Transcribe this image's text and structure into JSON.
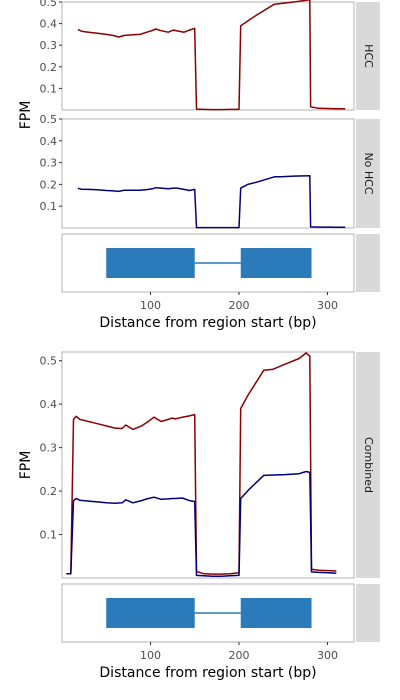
{
  "chart_data": [
    {
      "type": "line",
      "facets": [
        {
          "label": "HCC",
          "ylim": [
            0,
            0.5
          ],
          "yticks": [
            0.1,
            0.2,
            0.3,
            0.4,
            0.5
          ],
          "series": [
            {
              "color": "#8b0000",
              "x": [
                18,
                22,
                30,
                40,
                50,
                58,
                64,
                70,
                80,
                88,
                96,
                102,
                106,
                112,
                120,
                126,
                130,
                138,
                144,
                150,
                152,
                160,
                170,
                180,
                190,
                200,
                202,
                220,
                240,
                262,
                280,
                281,
                290,
                300,
                310,
                320
              ],
              "y": [
                0.373,
                0.365,
                0.36,
                0.355,
                0.35,
                0.345,
                0.338,
                0.345,
                0.348,
                0.35,
                0.36,
                0.368,
                0.375,
                0.367,
                0.36,
                0.37,
                0.366,
                0.36,
                0.37,
                0.378,
                0.004,
                0.003,
                0.002,
                0.002,
                0.003,
                0.003,
                0.39,
                0.44,
                0.49,
                0.5,
                0.51,
                0.015,
                0.008,
                0.007,
                0.006,
                0.006
              ]
            }
          ]
        },
        {
          "label": "No HCC",
          "ylim": [
            0,
            0.5
          ],
          "yticks": [
            0.1,
            0.2,
            0.3,
            0.4,
            0.5
          ],
          "series": [
            {
              "color": "#00007a",
              "x": [
                18,
                22,
                30,
                40,
                50,
                58,
                64,
                70,
                80,
                88,
                96,
                102,
                106,
                112,
                120,
                126,
                130,
                138,
                144,
                150,
                152,
                160,
                170,
                180,
                190,
                200,
                202,
                210,
                220,
                240,
                248,
                262,
                280,
                281,
                290,
                300,
                310,
                320
              ],
              "y": [
                0.182,
                0.178,
                0.177,
                0.175,
                0.172,
                0.17,
                0.168,
                0.173,
                0.173,
                0.173,
                0.176,
                0.18,
                0.185,
                0.183,
                0.18,
                0.183,
                0.183,
                0.177,
                0.172,
                0.177,
                0.002,
                0.002,
                0.002,
                0.002,
                0.002,
                0.002,
                0.183,
                0.2,
                0.21,
                0.235,
                0.235,
                0.238,
                0.24,
                0.005,
                0.004,
                0.004,
                0.003,
                0.003
              ]
            }
          ]
        }
      ],
      "gene_model": {
        "exons": [
          [
            50,
            150
          ],
          [
            202,
            282
          ]
        ],
        "intron": [
          150,
          202
        ]
      },
      "xlim": [
        0,
        330
      ],
      "xticks": [
        100,
        200,
        300
      ],
      "xlabel": "Distance from region start (bp)",
      "ylabel": "FPM"
    },
    {
      "type": "line",
      "facets": [
        {
          "label": "Combined",
          "ylim": [
            0,
            0.52
          ],
          "yticks": [
            0.1,
            0.2,
            0.3,
            0.4,
            0.5
          ],
          "series": [
            {
              "color": "#8b0000",
              "x": [
                5,
                10,
                13,
                16,
                20,
                30,
                40,
                50,
                60,
                68,
                72,
                80,
                90,
                96,
                104,
                112,
                120,
                124,
                128,
                136,
                144,
                150,
                152,
                160,
                170,
                180,
                190,
                200,
                202,
                210,
                228,
                238,
                252,
                268,
                276,
                280,
                282,
                290,
                300,
                310
              ],
              "y": [
                0.01,
                0.01,
                0.365,
                0.372,
                0.365,
                0.36,
                0.355,
                0.35,
                0.345,
                0.344,
                0.352,
                0.342,
                0.35,
                0.358,
                0.37,
                0.36,
                0.365,
                0.368,
                0.366,
                0.37,
                0.373,
                0.376,
                0.015,
                0.01,
                0.009,
                0.009,
                0.01,
                0.012,
                0.39,
                0.42,
                0.478,
                0.48,
                0.492,
                0.505,
                0.518,
                0.51,
                0.02,
                0.018,
                0.017,
                0.016
              ]
            },
            {
              "color": "#00007a",
              "x": [
                5,
                10,
                13,
                16,
                20,
                30,
                40,
                50,
                60,
                68,
                72,
                80,
                90,
                96,
                104,
                112,
                120,
                124,
                128,
                136,
                144,
                150,
                152,
                160,
                170,
                180,
                190,
                200,
                202,
                212,
                228,
                240,
                252,
                268,
                276,
                280,
                282,
                290,
                300,
                310
              ],
              "y": [
                0.01,
                0.01,
                0.178,
                0.183,
                0.179,
                0.177,
                0.175,
                0.173,
                0.172,
                0.173,
                0.18,
                0.173,
                0.178,
                0.182,
                0.186,
                0.181,
                0.182,
                0.183,
                0.183,
                0.184,
                0.178,
                0.176,
                0.006,
                0.005,
                0.004,
                0.004,
                0.005,
                0.006,
                0.183,
                0.205,
                0.236,
                0.237,
                0.238,
                0.24,
                0.245,
                0.243,
                0.014,
                0.013,
                0.012,
                0.011
              ]
            }
          ]
        }
      ],
      "gene_model": {
        "exons": [
          [
            50,
            150
          ],
          [
            202,
            282
          ]
        ],
        "intron": [
          150,
          202
        ]
      },
      "xlim": [
        0,
        330
      ],
      "xticks": [
        100,
        200,
        300
      ],
      "xlabel": "Distance from region start (bp)",
      "ylabel": "FPM"
    }
  ]
}
